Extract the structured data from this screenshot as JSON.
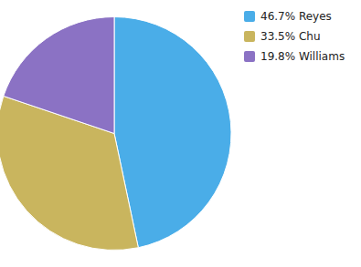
{
  "chart_data": {
    "type": "pie",
    "categories": [
      "46.7% Reyes",
      "33.5% Chu",
      "19.8% Williams"
    ],
    "values": [
      46.7,
      33.5,
      19.8
    ],
    "colors": [
      "#4AADE8",
      "#C9B55E",
      "#8B72C4"
    ],
    "legend": "right"
  }
}
